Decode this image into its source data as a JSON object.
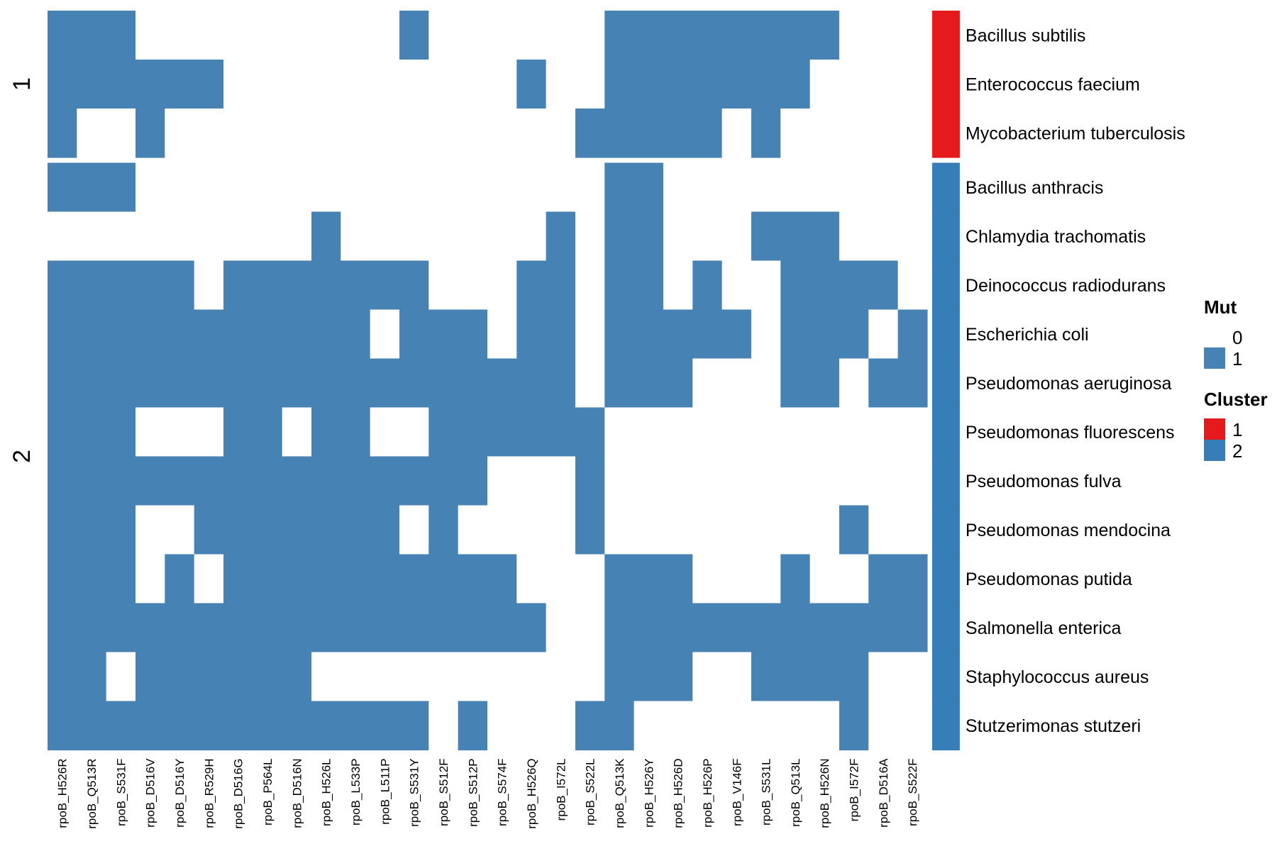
{
  "chart_data": {
    "type": "heatmap",
    "title": "",
    "xlabel": "",
    "ylabel": "",
    "columns": [
      "rpoB_H526R",
      "rpoB_Q513R",
      "rpoB_S531F",
      "rpoB_D516V",
      "rpoB_D516Y",
      "rpoB_R529H",
      "rpoB_D516G",
      "rpoB_P564L",
      "rpoB_D516N",
      "rpoB_H526L",
      "rpoB_L533P",
      "rpoB_L511P",
      "rpoB_S531Y",
      "rpoB_S512F",
      "rpoB_S512P",
      "rpoB_S574F",
      "rpoB_H526Q",
      "rpoB_I572L",
      "rpoB_S522L",
      "rpoB_Q513K",
      "rpoB_H526Y",
      "rpoB_H526D",
      "rpoB_H526P",
      "rpoB_V146F",
      "rpoB_S531L",
      "rpoB_Q513L",
      "rpoB_H526N",
      "rpoB_I572F",
      "rpoB_D516A",
      "rpoB_S522F"
    ],
    "rows": [
      "Bacillus subtilis",
      "Enterococcus faecium",
      "Mycobacterium tuberculosis",
      "Bacillus anthracis",
      "Chlamydia trachomatis",
      "Deinococcus radiodurans",
      "Escherichia coli",
      "Pseudomonas aeruginosa",
      "Pseudomonas fluorescens",
      "Pseudomonas fulva",
      "Pseudomonas mendocina",
      "Pseudomonas putida",
      "Salmonella enterica",
      "Staphylococcus aureus",
      "Stutzerimonas stutzeri"
    ],
    "row_cluster": [
      "1",
      "1",
      "1",
      "2",
      "2",
      "2",
      "2",
      "2",
      "2",
      "2",
      "2",
      "2",
      "2",
      "2",
      "2"
    ],
    "row_split_labels": [
      "1",
      "2"
    ],
    "values": [
      [
        1,
        1,
        1,
        0,
        0,
        0,
        0,
        0,
        0,
        0,
        0,
        0,
        1,
        0,
        0,
        0,
        0,
        0,
        0,
        1,
        1,
        1,
        1,
        1,
        1,
        1,
        1,
        0,
        0,
        0
      ],
      [
        1,
        1,
        1,
        1,
        1,
        1,
        0,
        0,
        0,
        0,
        0,
        0,
        0,
        0,
        0,
        0,
        1,
        0,
        0,
        1,
        1,
        1,
        1,
        1,
        1,
        1,
        0,
        0,
        0,
        0
      ],
      [
        1,
        0,
        0,
        1,
        0,
        0,
        0,
        0,
        0,
        0,
        0,
        0,
        0,
        0,
        0,
        0,
        0,
        0,
        1,
        1,
        1,
        1,
        1,
        0,
        1,
        0,
        0,
        0,
        0,
        0
      ],
      [
        1,
        1,
        1,
        0,
        0,
        0,
        0,
        0,
        0,
        0,
        0,
        0,
        0,
        0,
        0,
        0,
        0,
        0,
        0,
        1,
        1,
        0,
        0,
        0,
        0,
        0,
        0,
        0,
        0,
        0
      ],
      [
        0,
        0,
        0,
        0,
        0,
        0,
        0,
        0,
        0,
        1,
        0,
        0,
        0,
        0,
        0,
        0,
        0,
        1,
        0,
        1,
        1,
        0,
        0,
        0,
        1,
        1,
        1,
        0,
        0,
        0
      ],
      [
        1,
        1,
        1,
        1,
        1,
        0,
        1,
        1,
        1,
        1,
        1,
        1,
        1,
        0,
        0,
        0,
        1,
        1,
        0,
        1,
        1,
        0,
        1,
        0,
        0,
        1,
        1,
        1,
        1,
        0
      ],
      [
        1,
        1,
        1,
        1,
        1,
        1,
        1,
        1,
        1,
        1,
        1,
        0,
        1,
        1,
        1,
        0,
        1,
        1,
        0,
        1,
        1,
        1,
        1,
        1,
        0,
        1,
        1,
        1,
        0,
        1
      ],
      [
        1,
        1,
        1,
        1,
        1,
        1,
        1,
        1,
        1,
        1,
        1,
        1,
        1,
        1,
        1,
        1,
        1,
        1,
        0,
        1,
        1,
        1,
        0,
        0,
        0,
        1,
        1,
        0,
        1,
        1
      ],
      [
        1,
        1,
        1,
        0,
        0,
        0,
        1,
        1,
        0,
        1,
        1,
        0,
        0,
        1,
        1,
        1,
        1,
        1,
        1,
        0,
        0,
        0,
        0,
        0,
        0,
        0,
        0,
        0,
        0,
        0
      ],
      [
        1,
        1,
        1,
        1,
        1,
        1,
        1,
        1,
        1,
        1,
        1,
        1,
        1,
        1,
        1,
        0,
        0,
        0,
        1,
        0,
        0,
        0,
        0,
        0,
        0,
        0,
        0,
        0,
        0,
        0
      ],
      [
        1,
        1,
        1,
        0,
        0,
        1,
        1,
        1,
        1,
        1,
        1,
        1,
        0,
        1,
        0,
        0,
        0,
        0,
        1,
        0,
        0,
        0,
        0,
        0,
        0,
        0,
        0,
        1,
        0,
        0
      ],
      [
        1,
        1,
        1,
        0,
        1,
        0,
        1,
        1,
        1,
        1,
        1,
        1,
        1,
        1,
        1,
        1,
        0,
        0,
        0,
        1,
        1,
        1,
        0,
        0,
        0,
        1,
        0,
        0,
        1,
        1
      ],
      [
        1,
        1,
        1,
        1,
        1,
        1,
        1,
        1,
        1,
        1,
        1,
        1,
        1,
        1,
        1,
        1,
        1,
        0,
        0,
        1,
        1,
        1,
        1,
        1,
        1,
        1,
        1,
        1,
        1,
        1
      ],
      [
        1,
        1,
        0,
        1,
        1,
        1,
        1,
        1,
        1,
        0,
        0,
        0,
        0,
        0,
        0,
        0,
        0,
        0,
        0,
        1,
        1,
        1,
        0,
        0,
        1,
        1,
        1,
        1,
        0,
        0
      ],
      [
        1,
        1,
        1,
        1,
        1,
        1,
        1,
        1,
        1,
        1,
        1,
        1,
        1,
        0,
        1,
        0,
        0,
        0,
        1,
        1,
        0,
        0,
        0,
        0,
        0,
        0,
        0,
        1,
        0,
        0
      ]
    ],
    "colors": {
      "mut_0": "#ffffff",
      "mut_1": "#4682b4",
      "cluster_1": "#e41a1c",
      "cluster_2": "#377eb8"
    },
    "legend": {
      "position": "right",
      "mut_title": "Mut",
      "mut_levels": [
        "0",
        "1"
      ],
      "cluster_title": "Cluster",
      "cluster_levels": [
        "1",
        "2"
      ]
    }
  }
}
